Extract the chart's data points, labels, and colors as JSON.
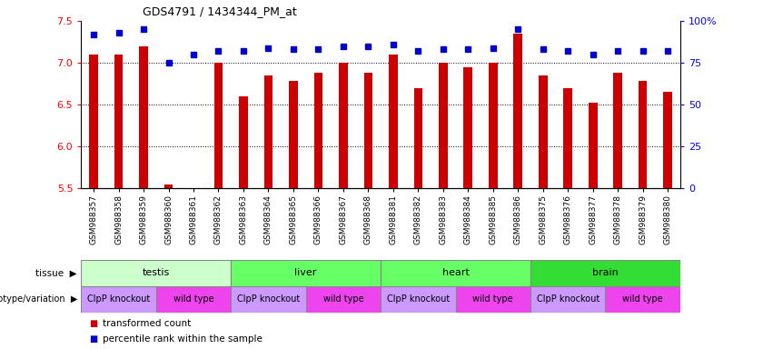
{
  "title": "GDS4791 / 1434344_PM_at",
  "samples": [
    "GSM988357",
    "GSM988358",
    "GSM988359",
    "GSM988360",
    "GSM988361",
    "GSM988362",
    "GSM988363",
    "GSM988364",
    "GSM988365",
    "GSM988366",
    "GSM988367",
    "GSM988368",
    "GSM988381",
    "GSM988382",
    "GSM988383",
    "GSM988384",
    "GSM988385",
    "GSM988386",
    "GSM988375",
    "GSM988376",
    "GSM988377",
    "GSM988378",
    "GSM988379",
    "GSM988380"
  ],
  "bar_values": [
    7.1,
    7.1,
    7.2,
    5.55,
    5.5,
    7.0,
    6.6,
    6.85,
    6.78,
    6.88,
    7.0,
    6.88,
    7.1,
    6.7,
    7.0,
    6.95,
    7.0,
    7.35,
    6.85,
    6.7,
    6.52,
    6.88,
    6.78,
    6.65
  ],
  "percentile_values": [
    92,
    93,
    95,
    75,
    80,
    82,
    82,
    84,
    83,
    83,
    85,
    85,
    86,
    82,
    83,
    83,
    84,
    95,
    83,
    82,
    80,
    82,
    82,
    82
  ],
  "ymin": 5.5,
  "ymax": 7.5,
  "yticks": [
    5.5,
    6.0,
    6.5,
    7.0,
    7.5
  ],
  "y2min": 0,
  "y2max": 100,
  "y2ticks": [
    0,
    25,
    50,
    75,
    100
  ],
  "y2ticklabels": [
    "0",
    "25",
    "50",
    "75",
    "100%"
  ],
  "bar_color": "#CC0000",
  "dot_color": "#0000CC",
  "tissue_groups": [
    {
      "label": "testis",
      "start": 0,
      "end": 6,
      "color": "#ccffcc"
    },
    {
      "label": "liver",
      "start": 6,
      "end": 12,
      "color": "#66ff66"
    },
    {
      "label": "heart",
      "start": 12,
      "end": 18,
      "color": "#66ff66"
    },
    {
      "label": "brain",
      "start": 18,
      "end": 24,
      "color": "#33dd33"
    }
  ],
  "genotype_groups": [
    {
      "label": "ClpP knockout",
      "start": 0,
      "end": 3,
      "color": "#cc99ff"
    },
    {
      "label": "wild type",
      "start": 3,
      "end": 6,
      "color": "#ee44ee"
    },
    {
      "label": "ClpP knockout",
      "start": 6,
      "end": 9,
      "color": "#cc99ff"
    },
    {
      "label": "wild type",
      "start": 9,
      "end": 12,
      "color": "#ee44ee"
    },
    {
      "label": "ClpP knockout",
      "start": 12,
      "end": 15,
      "color": "#cc99ff"
    },
    {
      "label": "wild type",
      "start": 15,
      "end": 18,
      "color": "#ee44ee"
    },
    {
      "label": "ClpP knockout",
      "start": 18,
      "end": 21,
      "color": "#cc99ff"
    },
    {
      "label": "wild type",
      "start": 21,
      "end": 24,
      "color": "#ee44ee"
    }
  ],
  "legend_bar_color": "#CC0000",
  "legend_dot_color": "#0000CC",
  "legend_bar_label": "transformed count",
  "legend_dot_label": "percentile rank within the sample",
  "bar_width": 0.35,
  "xlabel_fontsize": 6.5
}
